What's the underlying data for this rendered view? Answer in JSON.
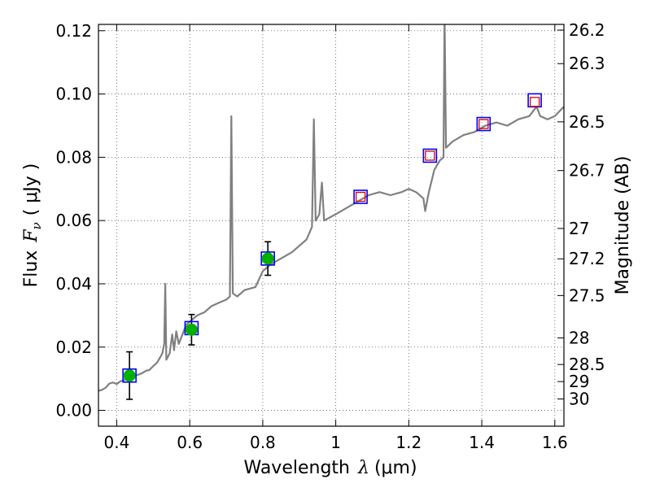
{
  "chart_data": {
    "type": "line",
    "xlabel": "Wavelength",
    "xlabel_symbol": "λ",
    "xlabel_unit": "(μm)",
    "ylabel": "Flux",
    "ylabel_symbol": "F",
    "ylabel_subscript": "ν",
    "ylabel_unit": "( μJy )",
    "y2label": "Magnitude (AB)",
    "xlim": [
      0.35,
      1.625
    ],
    "ylim": [
      -0.005,
      0.122
    ],
    "grid": true,
    "x_ticks": [
      {
        "value": 0.4,
        "label": "0.4"
      },
      {
        "value": 0.6,
        "label": "0.6"
      },
      {
        "value": 0.8,
        "label": "0.8"
      },
      {
        "value": 1.0,
        "label": "1"
      },
      {
        "value": 1.2,
        "label": "1.2"
      },
      {
        "value": 1.4,
        "label": "1.4"
      },
      {
        "value": 1.6,
        "label": "1.6"
      }
    ],
    "y_ticks": [
      {
        "value": 0.0,
        "label": "0.00"
      },
      {
        "value": 0.02,
        "label": "0.02"
      },
      {
        "value": 0.04,
        "label": "0.04"
      },
      {
        "value": 0.06,
        "label": "0.06"
      },
      {
        "value": 0.08,
        "label": "0.08"
      },
      {
        "value": 0.1,
        "label": "0.10"
      },
      {
        "value": 0.12,
        "label": "0.12"
      }
    ],
    "y2_ticks": [
      {
        "flux": 0.1202,
        "label": "26.2"
      },
      {
        "flux": 0.1096,
        "label": "26.3"
      },
      {
        "flux": 0.0912,
        "label": "26.5"
      },
      {
        "flux": 0.0758,
        "label": "26.7"
      },
      {
        "flux": 0.0575,
        "label": "27"
      },
      {
        "flux": 0.0479,
        "label": "27.2"
      },
      {
        "flux": 0.0363,
        "label": "27.5"
      },
      {
        "flux": 0.0229,
        "label": "28"
      },
      {
        "flux": 0.0145,
        "label": "28.5"
      },
      {
        "flux": 0.0091,
        "label": "29"
      },
      {
        "flux": 0.0036,
        "label": "30"
      }
    ],
    "series": [
      {
        "name": "model spectrum",
        "color": "#808080",
        "points": [
          [
            0.35,
            0.0062
          ],
          [
            0.36,
            0.0065
          ],
          [
            0.37,
            0.0072
          ],
          [
            0.38,
            0.0085
          ],
          [
            0.39,
            0.0088
          ],
          [
            0.4,
            0.0083
          ],
          [
            0.41,
            0.0092
          ],
          [
            0.42,
            0.0095
          ],
          [
            0.43,
            0.0103
          ],
          [
            0.44,
            0.0105
          ],
          [
            0.45,
            0.011
          ],
          [
            0.46,
            0.0113
          ],
          [
            0.47,
            0.0118
          ],
          [
            0.48,
            0.0125
          ],
          [
            0.49,
            0.0128
          ],
          [
            0.5,
            0.014
          ],
          [
            0.51,
            0.015
          ],
          [
            0.52,
            0.017
          ],
          [
            0.525,
            0.018
          ],
          [
            0.53,
            0.021
          ],
          [
            0.533,
            0.04
          ],
          [
            0.536,
            0.016
          ],
          [
            0.545,
            0.018
          ],
          [
            0.552,
            0.024
          ],
          [
            0.557,
            0.019
          ],
          [
            0.563,
            0.025
          ],
          [
            0.57,
            0.021
          ],
          [
            0.58,
            0.024
          ],
          [
            0.59,
            0.027
          ],
          [
            0.6,
            0.028
          ],
          [
            0.62,
            0.03
          ],
          [
            0.64,
            0.031
          ],
          [
            0.66,
            0.033
          ],
          [
            0.68,
            0.034
          ],
          [
            0.7,
            0.035
          ],
          [
            0.71,
            0.036
          ],
          [
            0.714,
            0.093
          ],
          [
            0.718,
            0.037
          ],
          [
            0.73,
            0.036
          ],
          [
            0.75,
            0.038
          ],
          [
            0.78,
            0.039
          ],
          [
            0.8,
            0.044
          ],
          [
            0.82,
            0.046
          ],
          [
            0.85,
            0.048
          ],
          [
            0.88,
            0.05
          ],
          [
            0.9,
            0.052
          ],
          [
            0.92,
            0.054
          ],
          [
            0.935,
            0.058
          ],
          [
            0.94,
            0.092
          ],
          [
            0.945,
            0.06
          ],
          [
            0.955,
            0.062
          ],
          [
            0.962,
            0.072
          ],
          [
            0.968,
            0.06
          ],
          [
            1.0,
            0.062
          ],
          [
            1.03,
            0.064
          ],
          [
            1.06,
            0.066
          ],
          [
            1.09,
            0.068
          ],
          [
            1.12,
            0.069
          ],
          [
            1.15,
            0.068
          ],
          [
            1.18,
            0.069
          ],
          [
            1.2,
            0.07
          ],
          [
            1.22,
            0.069
          ],
          [
            1.24,
            0.067
          ],
          [
            1.245,
            0.063
          ],
          [
            1.255,
            0.069
          ],
          [
            1.27,
            0.076
          ],
          [
            1.285,
            0.079
          ],
          [
            1.295,
            0.08
          ],
          [
            1.298,
            0.125
          ],
          [
            1.302,
            0.083
          ],
          [
            1.32,
            0.085
          ],
          [
            1.35,
            0.087
          ],
          [
            1.38,
            0.088
          ],
          [
            1.41,
            0.09
          ],
          [
            1.44,
            0.091
          ],
          [
            1.47,
            0.09
          ],
          [
            1.5,
            0.092
          ],
          [
            1.53,
            0.093
          ],
          [
            1.55,
            0.096
          ],
          [
            1.56,
            0.093
          ],
          [
            1.58,
            0.092
          ],
          [
            1.6,
            0.093
          ],
          [
            1.625,
            0.096
          ]
        ]
      }
    ],
    "model_points": [
      {
        "x": 0.435,
        "y": 0.011
      },
      {
        "x": 0.605,
        "y": 0.026
      },
      {
        "x": 0.814,
        "y": 0.048
      },
      {
        "x": 1.068,
        "y": 0.0675
      },
      {
        "x": 1.258,
        "y": 0.0805
      },
      {
        "x": 1.405,
        "y": 0.0905
      },
      {
        "x": 1.545,
        "y": 0.098
      }
    ],
    "observed_points": [
      {
        "x": 0.435,
        "y": 0.011,
        "err": 0.0075
      },
      {
        "x": 0.605,
        "y": 0.0255,
        "err": 0.0048
      },
      {
        "x": 0.814,
        "y": 0.048,
        "err": 0.0053
      }
    ],
    "upper_limit_points": [
      {
        "x": 1.068,
        "y": 0.0675
      },
      {
        "x": 1.258,
        "y": 0.0805
      },
      {
        "x": 1.405,
        "y": 0.0905
      },
      {
        "x": 1.545,
        "y": 0.0975
      }
    ],
    "colors": {
      "spectrum": "#808080",
      "model_square": "#0000ff",
      "observed_fill": "#00b000",
      "upper_limit_square": "#dd0000",
      "axis": "#000000",
      "grid": "#555555"
    }
  }
}
